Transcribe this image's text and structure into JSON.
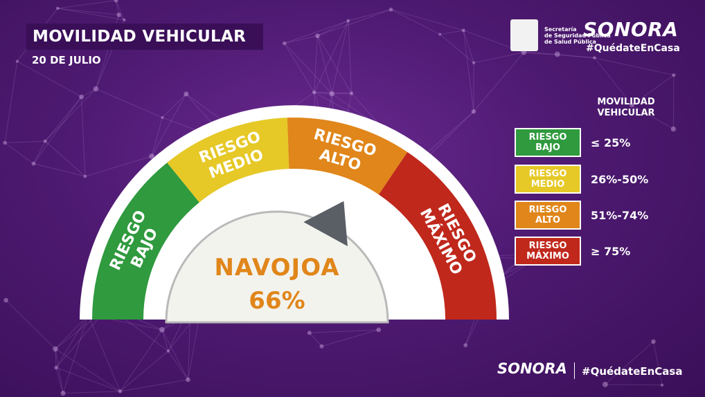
{
  "header": {
    "title": "MOVILIDAD VEHICULAR",
    "date": "20 DE JULIO"
  },
  "branding": {
    "agency_line1": "Secretaría",
    "agency_line2": "de Seguridad Pública",
    "agency_line3": "de Salud Pública",
    "brand_name": "SONORA",
    "hashtag": "#QuédateEnCasa"
  },
  "gauge": {
    "location": "NAVOJOA",
    "value_label": "66%",
    "value": 66,
    "segments": [
      {
        "line1": "RIESGO",
        "line2": "BAJO",
        "color": "#2f9a3e"
      },
      {
        "line1": "RIESGO",
        "line2": "MEDIO",
        "color": "#e6c826"
      },
      {
        "line1": "RIESGO",
        "line2": "ALTO",
        "color": "#e0861a"
      },
      {
        "line1": "RIESGO",
        "line2": "MÁXIMO",
        "color": "#c0281c"
      }
    ]
  },
  "legend": {
    "heading_line1": "MOVILIDAD",
    "heading_line2": "VEHICULAR",
    "items": [
      {
        "line1": "RIESGO",
        "line2": "BAJO",
        "range": "≤ 25%",
        "color": "#2f9a3e"
      },
      {
        "line1": "RIESGO",
        "line2": "MEDIO",
        "range": "26%-50%",
        "color": "#e6c826"
      },
      {
        "line1": "RIESGO",
        "line2": "ALTO",
        "range": "51%-74%",
        "color": "#e0861a"
      },
      {
        "line1": "RIESGO",
        "line2": "MÁXIMO",
        "range": "≥ 75%",
        "color": "#c0281c"
      }
    ]
  }
}
